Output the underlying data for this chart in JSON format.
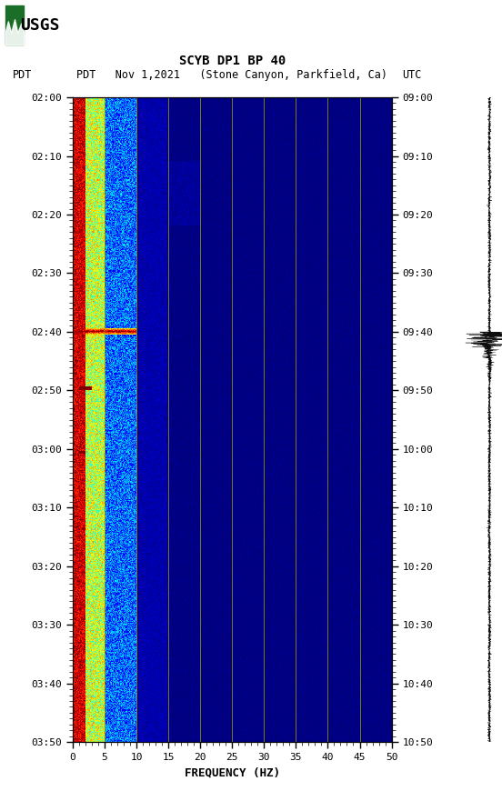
{
  "title_line1": "SCYB DP1 BP 40",
  "title_line2_left": "PDT   Nov 1,2021   (Stone Canyon, Parkfield, Ca)",
  "title_line2_right": "UTC",
  "freq_min": 0,
  "freq_max": 50,
  "freq_ticks": [
    0,
    5,
    10,
    15,
    20,
    25,
    30,
    35,
    40,
    45,
    50
  ],
  "freq_label": "FREQUENCY (HZ)",
  "left_time_labels": [
    "02:00",
    "02:10",
    "02:20",
    "02:30",
    "02:40",
    "02:50",
    "03:00",
    "03:10",
    "03:20",
    "03:30",
    "03:40",
    "03:50"
  ],
  "right_time_labels": [
    "09:00",
    "09:10",
    "09:20",
    "09:30",
    "09:40",
    "09:50",
    "10:00",
    "10:10",
    "10:20",
    "10:30",
    "10:40",
    "10:50"
  ],
  "n_time": 660,
  "n_freq": 500,
  "vertical_grid_color": "#9B9B00",
  "vertical_grid_freqs": [
    5,
    10,
    15,
    20,
    25,
    30,
    35,
    40,
    45
  ],
  "usgs_green": "#1a6e28",
  "figure_width": 5.52,
  "figure_height": 8.92,
  "dpi": 100
}
